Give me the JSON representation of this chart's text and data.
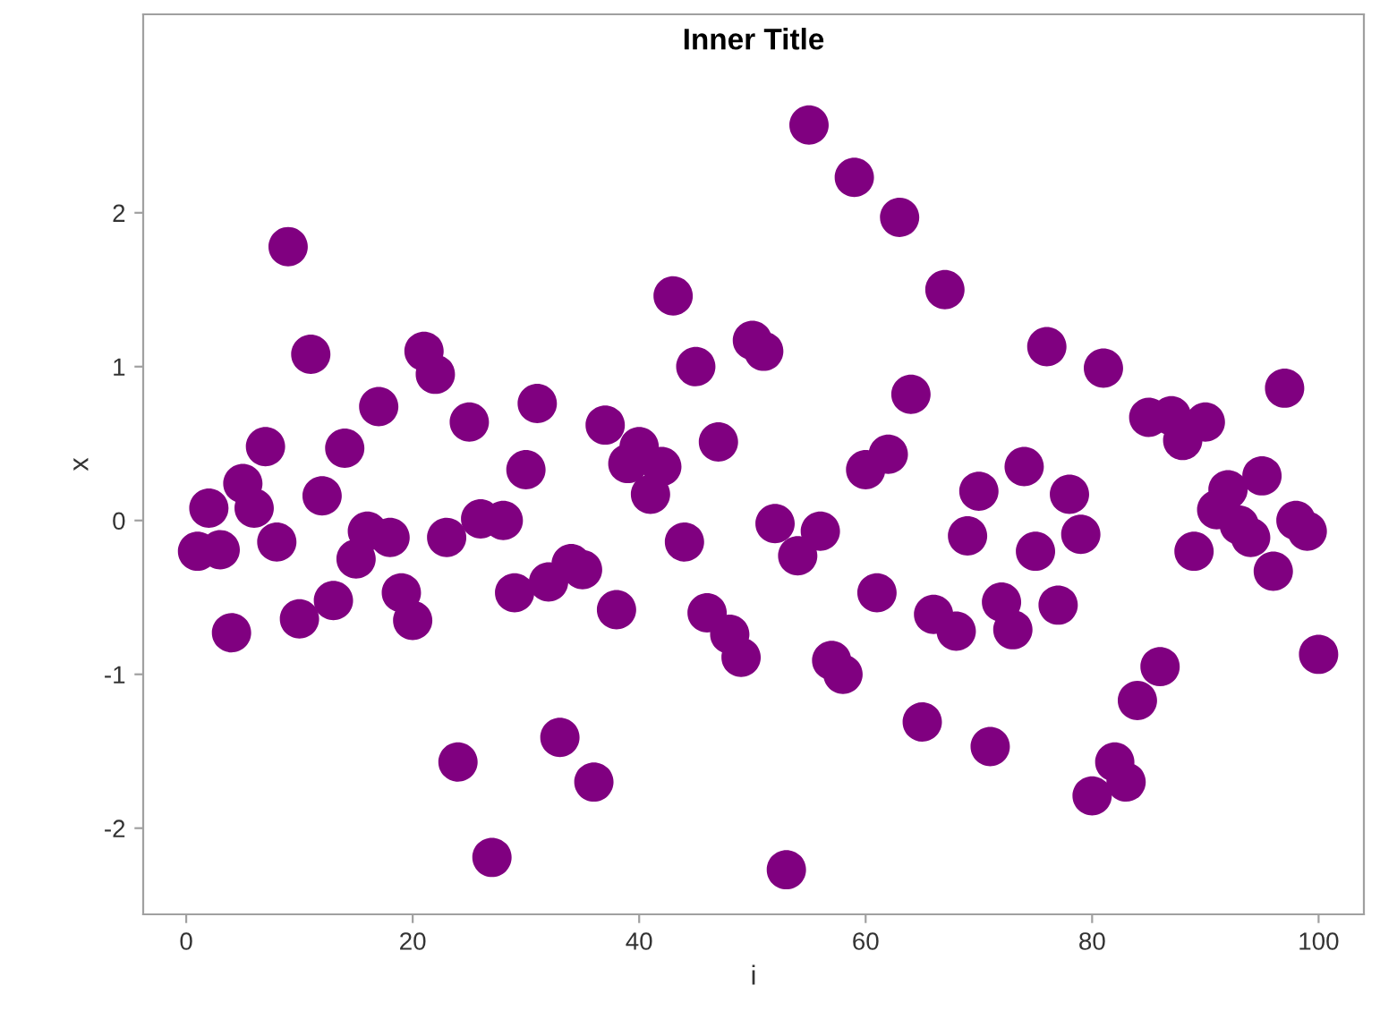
{
  "chart_data": {
    "type": "scatter",
    "title": "Inner Title",
    "xlabel": "i",
    "ylabel": "x",
    "x": [
      1,
      2,
      3,
      4,
      5,
      6,
      7,
      8,
      9,
      10,
      11,
      12,
      13,
      14,
      15,
      16,
      17,
      18,
      19,
      20,
      21,
      22,
      23,
      24,
      25,
      26,
      27,
      28,
      29,
      30,
      31,
      32,
      33,
      34,
      35,
      36,
      37,
      38,
      39,
      40,
      41,
      42,
      43,
      44,
      45,
      46,
      47,
      48,
      49,
      50,
      51,
      52,
      53,
      54,
      55,
      56,
      57,
      58,
      59,
      60,
      61,
      62,
      63,
      64,
      65,
      66,
      67,
      68,
      69,
      70,
      71,
      72,
      73,
      74,
      75,
      76,
      77,
      78,
      79,
      80,
      81,
      82,
      83,
      84,
      85,
      86,
      87,
      88,
      89,
      90,
      91,
      92,
      93,
      94,
      95,
      96,
      97,
      98,
      99,
      100
    ],
    "series": [
      {
        "color": "#800080",
        "values": [
          -0.2,
          0.08,
          -0.19,
          -0.73,
          0.24,
          0.08,
          0.48,
          -0.14,
          1.78,
          -0.64,
          1.08,
          0.16,
          -0.52,
          0.47,
          -0.25,
          -0.07,
          0.74,
          -0.11,
          -0.47,
          -0.65,
          1.1,
          0.95,
          -0.11,
          -1.57,
          0.64,
          0.01,
          -2.19,
          0.0,
          -0.47,
          0.33,
          0.76,
          -0.4,
          -1.41,
          -0.28,
          -0.32,
          -1.7,
          0.62,
          -0.58,
          0.37,
          0.48,
          0.17,
          0.35,
          1.46,
          -0.14,
          1.0,
          -0.6,
          0.51,
          -0.74,
          -0.89,
          1.17,
          1.1,
          -0.02,
          -2.27,
          -0.23,
          2.57,
          -0.07,
          -0.91,
          -1.0,
          2.23,
          0.33,
          -0.47,
          0.43,
          1.97,
          0.82,
          -1.31,
          -0.61,
          1.5,
          -0.72,
          -0.1,
          0.19,
          -1.47,
          -0.53,
          -0.71,
          0.35,
          -0.2,
          1.13,
          -0.55,
          0.17,
          -0.09,
          -1.79,
          0.99,
          -1.57,
          -1.7,
          -1.17,
          0.67,
          -0.95,
          0.68,
          0.52,
          -0.2,
          0.64,
          0.07,
          0.2,
          -0.03,
          -0.11,
          0.29,
          -0.33,
          0.86,
          0.0,
          -0.07,
          -0.87
        ]
      }
    ],
    "xlim": [
      -3.8,
      104
    ],
    "ylim": [
      -2.56,
      3.29
    ],
    "xticks": [
      0,
      20,
      40,
      60,
      80,
      100
    ],
    "yticks": [
      -2,
      -1,
      0,
      1,
      2
    ],
    "marker": "circle",
    "grid": false,
    "legend": false
  }
}
